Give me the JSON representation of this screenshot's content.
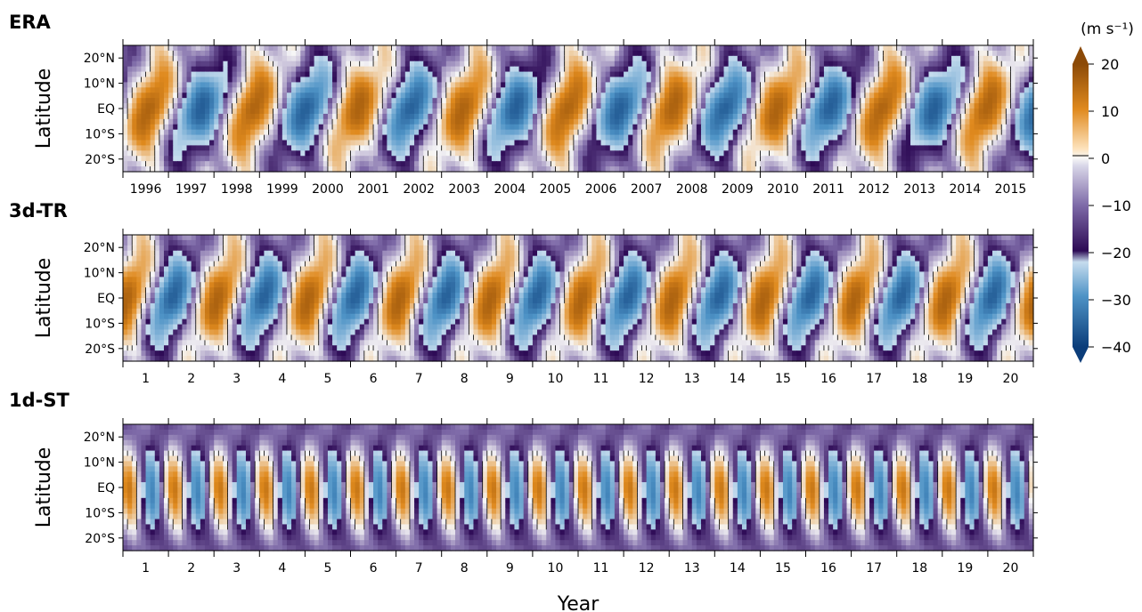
{
  "chart_data": {
    "type": "heatmap",
    "xlabel": "Year",
    "colorbar": {
      "unit_label": "(m s⁻¹)",
      "ticks": [
        20,
        10,
        0,
        -10,
        -20,
        -30,
        -40
      ],
      "range": [
        -40,
        20
      ],
      "extend": "both",
      "colors": {
        "positive_strong": "#8c4a07",
        "positive_mid": "#e08a1e",
        "positive_weak": "#fde3bd",
        "zero": "#f7f7f7",
        "negative_weak": "#d8d6e8",
        "negative_mid": "#7e6aa8",
        "negative_strong": "#2d0a55",
        "blue_weak": "#c6dcee",
        "blue_mid": "#4e93c6",
        "blue_strong": "#0b3d7a"
      }
    },
    "panels": [
      {
        "title": "ERA",
        "ylabel": "Latitude",
        "yticks": [
          "20°N",
          "10°N",
          "EQ",
          "10°S",
          "20°S"
        ],
        "xticks": [
          "1996",
          "1997",
          "1998",
          "1999",
          "2000",
          "2001",
          "2002",
          "2003",
          "2004",
          "2005",
          "2006",
          "2007",
          "2008",
          "2009",
          "2010",
          "2011",
          "2012",
          "2013",
          "2014",
          "2015"
        ],
        "period_years": 2.3,
        "phase": 0.0
      },
      {
        "title": "3d-TR",
        "ylabel": "Latitude",
        "yticks": [
          "20°N",
          "10°N",
          "EQ",
          "10°S",
          "20°S"
        ],
        "xticks": [
          "1",
          "2",
          "3",
          "4",
          "5",
          "6",
          "7",
          "8",
          "9",
          "10",
          "11",
          "12",
          "13",
          "14",
          "15",
          "16",
          "17",
          "18",
          "19",
          "20"
        ],
        "period_years": 2.0,
        "phase": 1.3
      },
      {
        "title": "1d-ST",
        "ylabel": "Latitude",
        "yticks": [
          "20°N",
          "10°N",
          "EQ",
          "10°S",
          "20°S"
        ],
        "xticks": [
          "1",
          "2",
          "3",
          "4",
          "5",
          "6",
          "7",
          "8",
          "9",
          "10",
          "11",
          "12",
          "13",
          "14",
          "15",
          "16",
          "17",
          "18",
          "19",
          "20"
        ],
        "period_years": 1.0,
        "phase": 0.7
      }
    ]
  }
}
